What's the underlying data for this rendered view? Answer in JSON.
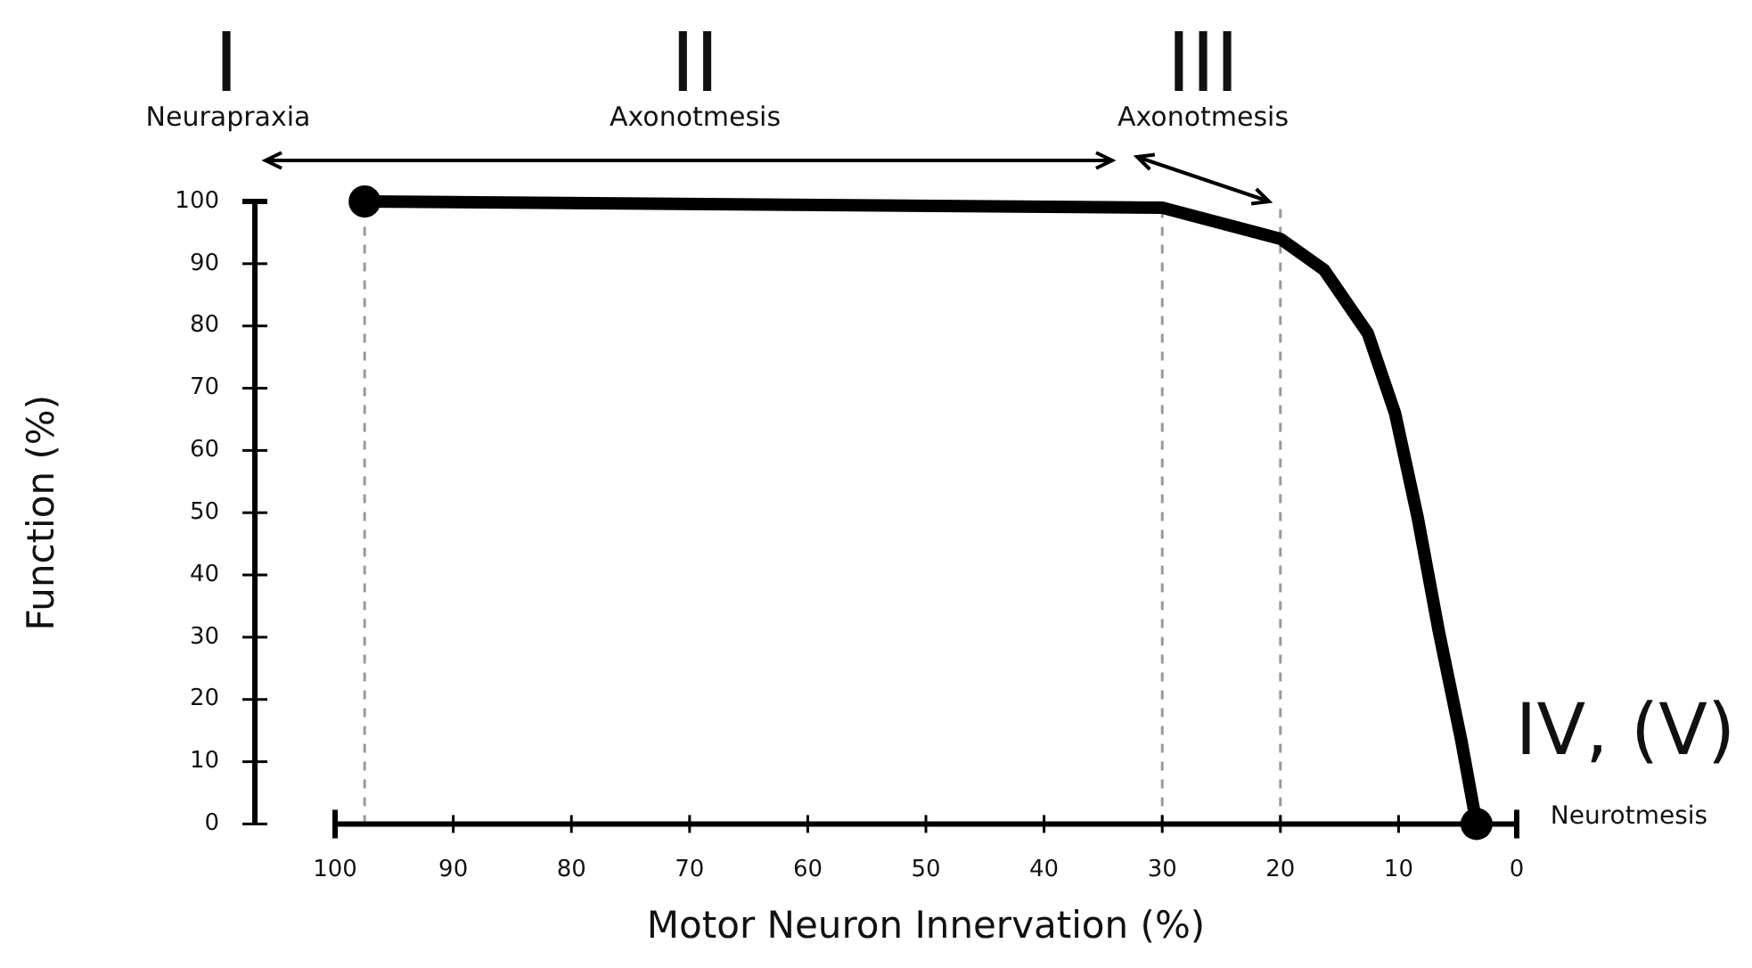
{
  "chart_data": {
    "type": "line",
    "xlabel": "Motor Neuron Innervation (%)",
    "ylabel": "Function (%)",
    "x": [
      97.5,
      30,
      20,
      16.3,
      12.6,
      10.3,
      8.4,
      6.6,
      4.7,
      3.4
    ],
    "series": [
      {
        "color": "#000000",
        "values": [
          100,
          99,
          94,
          89,
          78.8,
          66,
          49.4,
          31,
          13.5,
          0
        ],
        "marker": "none"
      },
      {
        "type": "scatter",
        "color": "#000000",
        "x": [
          97.5,
          3.4
        ],
        "values": [
          100,
          0
        ]
      }
    ],
    "xlim": [
      100,
      0
    ],
    "xticks": [
      100,
      90,
      80,
      70,
      60,
      50,
      40,
      30,
      20,
      10,
      0
    ],
    "ylim": [
      0,
      100
    ],
    "yticks": [
      0,
      10,
      20,
      30,
      40,
      50,
      60,
      70,
      80,
      90,
      100
    ],
    "ref_lines": [
      {
        "axis": "x",
        "value": 97.5,
        "color": "#999999",
        "line_style": "dashed"
      },
      {
        "axis": "x",
        "value": 30,
        "color": "#999999",
        "line_style": "dashed"
      },
      {
        "axis": "x",
        "value": 20,
        "color": "#999999",
        "line_style": "dashed"
      }
    ],
    "annotations": [
      "I",
      "Neurapraxia",
      "II",
      "Axonotmesis",
      "III",
      "Axonotmesis",
      "IV, (V)",
      "Neurotmesis"
    ],
    "grid": false,
    "legend": false,
    "marker": "circle",
    "line_style": "solid"
  }
}
